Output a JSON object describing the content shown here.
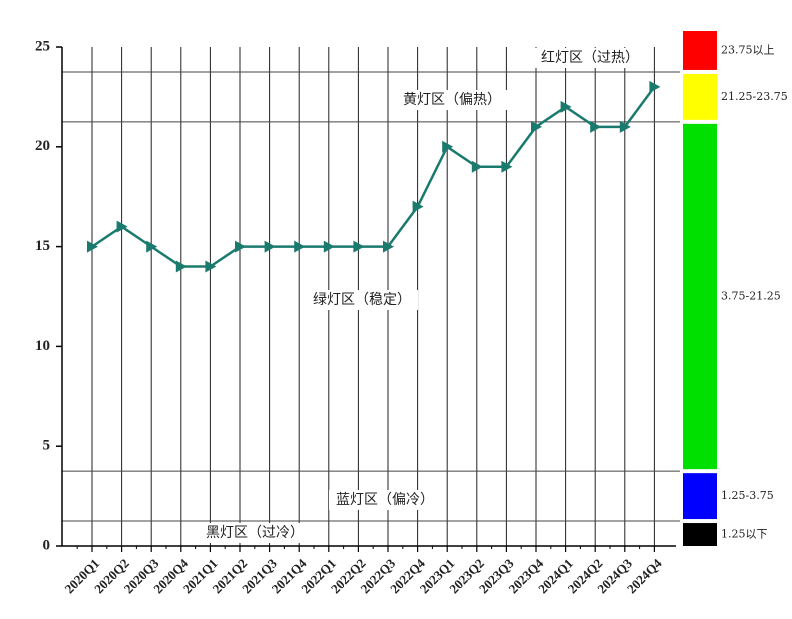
{
  "chart_data": {
    "type": "line",
    "categories": [
      "2020Q1",
      "2020Q2",
      "2020Q3",
      "2020Q4",
      "2021Q1",
      "2021Q2",
      "2021Q3",
      "2021Q4",
      "2022Q1",
      "2022Q2",
      "2022Q3",
      "2022Q4",
      "2023Q1",
      "2023Q2",
      "2023Q3",
      "2023Q4",
      "2024Q1",
      "2024Q2",
      "2024Q3",
      "2024Q4"
    ],
    "values": [
      15,
      16,
      15,
      14,
      14,
      15,
      15,
      15,
      15,
      15,
      15,
      17,
      20,
      19,
      19,
      21,
      22,
      21,
      21,
      23
    ],
    "color": "#1b7a6e",
    "ylim": [
      0,
      25
    ],
    "yticks": [
      0,
      5,
      10,
      15,
      20,
      25
    ],
    "grid": true,
    "thresholds": [
      1.25,
      3.75,
      21.25,
      23.75
    ],
    "zones": [
      {
        "label": "黑灯区（过冷）",
        "range_label": "1.25以下",
        "color": "#000000"
      },
      {
        "label": "蓝灯区（偏冷）",
        "range_label": "1.25-3.75",
        "color": "#0000ff"
      },
      {
        "label": "绿灯区（稳定）",
        "range_label": "3.75-21.25",
        "color": "#00e000"
      },
      {
        "label": "黄灯区（偏热）",
        "range_label": "21.25-23.75",
        "color": "#ffff00"
      },
      {
        "label": "红灯区（过热）",
        "range_label": "23.75以上",
        "color": "#ff0000"
      }
    ]
  }
}
